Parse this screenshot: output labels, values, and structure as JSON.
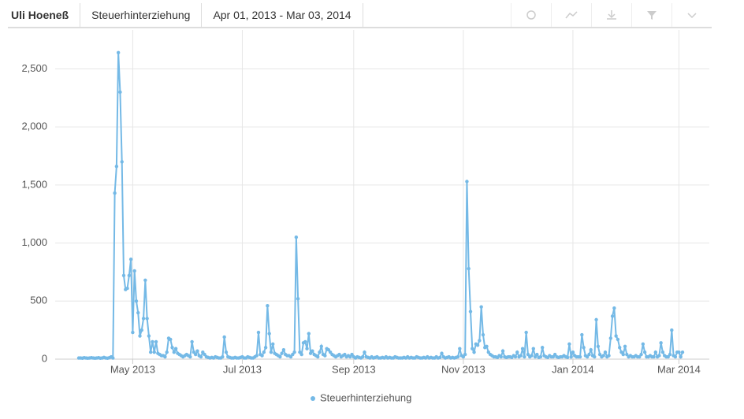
{
  "header": {
    "entity": "Uli Hoeneß",
    "topic": "Steuerhinterziehung",
    "date_range": "Apr 01, 2013 - Mar 03, 2014"
  },
  "chart_data": {
    "type": "line",
    "color": "#74b9e6",
    "grid": true,
    "legend": "bottom",
    "ylim": [
      0,
      2700
    ],
    "yticks": [
      0,
      500,
      {
        "value": 1000,
        "label": "1,000"
      },
      {
        "value": 1500,
        "label": "1,500"
      },
      {
        "value": 2000,
        "label": "2,000"
      },
      {
        "value": 2500,
        "label": "2,500"
      }
    ],
    "categories": [
      null,
      null,
      null,
      null,
      null,
      null,
      null,
      null,
      null,
      null,
      null,
      null,
      null,
      null,
      null,
      null,
      null,
      null,
      null,
      null,
      null,
      null,
      null,
      null,
      null,
      null,
      null,
      null,
      null,
      null,
      "May 2013",
      null,
      null,
      null,
      null,
      null,
      null,
      null,
      null,
      null,
      null,
      null,
      null,
      null,
      null,
      null,
      null,
      null,
      null,
      null,
      null,
      null,
      null,
      null,
      null,
      null,
      null,
      null,
      null,
      null,
      null,
      null,
      null,
      null,
      null,
      null,
      null,
      null,
      null,
      null,
      null,
      null,
      null,
      null,
      null,
      null,
      null,
      null,
      null,
      null,
      null,
      null,
      null,
      null,
      null,
      null,
      null,
      null,
      null,
      null,
      null,
      "Jul 2013",
      null,
      null,
      null,
      null,
      null,
      null,
      null,
      null,
      null,
      null,
      null,
      null,
      null,
      null,
      null,
      null,
      null,
      null,
      null,
      null,
      null,
      null,
      null,
      null,
      null,
      null,
      null,
      null,
      null,
      null,
      null,
      null,
      null,
      null,
      null,
      null,
      null,
      null,
      null,
      null,
      null,
      null,
      null,
      null,
      null,
      null,
      null,
      null,
      null,
      null,
      null,
      null,
      null,
      null,
      null,
      null,
      null,
      null,
      null,
      null,
      null,
      "Sep 2013",
      null,
      null,
      null,
      null,
      null,
      null,
      null,
      null,
      null,
      null,
      null,
      null,
      null,
      null,
      null,
      null,
      null,
      null,
      null,
      null,
      null,
      null,
      null,
      null,
      null,
      null,
      null,
      null,
      null,
      null,
      null,
      null,
      null,
      null,
      null,
      null,
      null,
      null,
      null,
      null,
      null,
      null,
      null,
      null,
      null,
      null,
      null,
      null,
      null,
      null,
      null,
      null,
      null,
      null,
      null,
      null,
      null,
      null,
      null,
      null,
      "Nov 2013",
      null,
      null,
      null,
      null,
      null,
      null,
      null,
      null,
      null,
      null,
      null,
      null,
      null,
      null,
      null,
      null,
      null,
      null,
      null,
      null,
      null,
      null,
      null,
      null,
      null,
      null,
      null,
      null,
      null,
      null,
      null,
      null,
      null,
      null,
      null,
      null,
      null,
      null,
      null,
      null,
      null,
      null,
      null,
      null,
      null,
      null,
      null,
      null,
      null,
      null,
      null,
      null,
      null,
      null,
      null,
      null,
      null,
      null,
      null,
      null,
      "Jan 2014",
      null,
      null,
      null,
      null,
      null,
      null,
      null,
      null,
      null,
      null,
      null,
      null,
      null,
      null,
      null,
      null,
      null,
      null,
      null,
      null,
      null,
      null,
      null,
      null,
      null,
      null,
      null,
      null,
      null,
      null,
      null,
      null,
      null,
      null,
      null,
      null,
      null,
      null,
      null,
      null,
      null,
      null,
      null,
      null,
      null,
      null,
      null,
      null,
      null,
      null,
      null,
      null,
      null,
      null,
      null,
      null,
      null,
      null,
      "Mar 2014",
      null,
      null
    ],
    "series": [
      {
        "name": "Steuerhinterziehung",
        "color": "#74b9e6",
        "values": [
          10,
          10,
          8,
          12,
          10,
          8,
          10,
          12,
          10,
          8,
          10,
          12,
          8,
          10,
          15,
          10,
          8,
          12,
          20,
          10,
          1430,
          1660,
          2640,
          2300,
          1700,
          720,
          600,
          610,
          720,
          860,
          230,
          760,
          500,
          400,
          200,
          250,
          350,
          680,
          350,
          200,
          60,
          150,
          60,
          150,
          50,
          40,
          30,
          30,
          20,
          60,
          180,
          170,
          100,
          60,
          90,
          50,
          40,
          30,
          20,
          30,
          40,
          30,
          20,
          150,
          60,
          40,
          70,
          30,
          20,
          60,
          40,
          20,
          15,
          10,
          15,
          10,
          20,
          15,
          10,
          10,
          20,
          190,
          60,
          20,
          15,
          10,
          10,
          15,
          10,
          10,
          15,
          20,
          10,
          10,
          20,
          15,
          10,
          10,
          20,
          30,
          230,
          40,
          30,
          60,
          100,
          460,
          220,
          60,
          130,
          50,
          40,
          30,
          20,
          50,
          80,
          40,
          30,
          30,
          20,
          40,
          60,
          1050,
          520,
          60,
          40,
          140,
          150,
          90,
          220,
          50,
          70,
          40,
          30,
          20,
          60,
          110,
          40,
          30,
          90,
          80,
          60,
          40,
          30,
          20,
          30,
          40,
          20,
          30,
          40,
          20,
          30,
          20,
          40,
          20,
          10,
          20,
          15,
          10,
          20,
          60,
          20,
          15,
          10,
          20,
          10,
          15,
          20,
          10,
          10,
          15,
          10,
          20,
          10,
          15,
          10,
          10,
          20,
          15,
          10,
          10,
          10,
          15,
          10,
          20,
          10,
          15,
          10,
          10,
          20,
          15,
          10,
          10,
          15,
          10,
          20,
          10,
          15,
          10,
          10,
          20,
          10,
          15,
          50,
          20,
          10,
          15,
          20,
          10,
          15,
          10,
          15,
          20,
          90,
          30,
          20,
          40,
          1530,
          780,
          410,
          90,
          60,
          130,
          120,
          160,
          450,
          210,
          100,
          110,
          60,
          40,
          30,
          20,
          20,
          15,
          30,
          20,
          70,
          20,
          15,
          20,
          20,
          15,
          30,
          20,
          60,
          20,
          30,
          90,
          20,
          230,
          40,
          20,
          30,
          90,
          20,
          40,
          15,
          20,
          100,
          30,
          20,
          15,
          30,
          20,
          20,
          40,
          20,
          15,
          20,
          20,
          30,
          20,
          15,
          130,
          20,
          60,
          30,
          20,
          20,
          20,
          210,
          100,
          30,
          20,
          40,
          80,
          30,
          20,
          340,
          110,
          40,
          20,
          30,
          60,
          20,
          30,
          180,
          370,
          440,
          200,
          170,
          100,
          60,
          40,
          110,
          40,
          20,
          30,
          20,
          20,
          30,
          20,
          20,
          40,
          130,
          60,
          20,
          20,
          30,
          20,
          20,
          60,
          20,
          30,
          140,
          60,
          30,
          20,
          20,
          40,
          250,
          30,
          20,
          60,
          60,
          20,
          60
        ]
      }
    ]
  }
}
